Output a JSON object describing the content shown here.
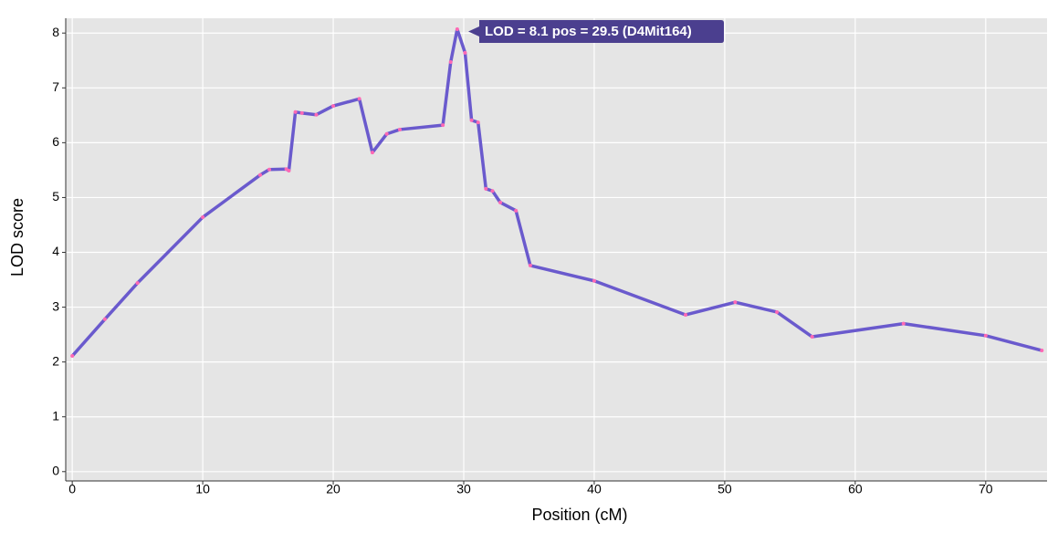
{
  "chart_data": {
    "type": "line",
    "xlabel": "Position (cM)",
    "ylabel": "LOD score",
    "annotation": "LOD = 8.1 pos = 29.5 (D4Mit164)",
    "xlim": [
      -0.5,
      74.7
    ],
    "ylim": [
      -0.17,
      8.27
    ],
    "xticks": [
      0,
      10,
      20,
      30,
      40,
      50,
      60,
      70
    ],
    "yticks": [
      0,
      1,
      2,
      3,
      4,
      5,
      6,
      7,
      8
    ],
    "grid": true,
    "background": "#e5e5e5",
    "series": [
      {
        "color": "#6a5acd",
        "marker_color": "#ff69b4",
        "x": [
          0,
          2.5,
          5,
          10,
          14.4,
          15.1,
          16.4,
          16.6,
          17.1,
          17.6,
          18.7,
          20,
          22,
          23,
          24.1,
          25.1,
          28.4,
          29,
          29.5,
          30.1,
          30.6,
          31.1,
          31.7,
          32.2,
          32.8,
          34,
          35.1,
          40,
          47,
          50.8,
          54,
          56.7,
          63.7,
          70,
          74.3
        ],
        "values": [
          2.11,
          2.78,
          3.44,
          4.64,
          5.41,
          5.51,
          5.52,
          5.49,
          6.56,
          6.54,
          6.51,
          6.67,
          6.8,
          5.82,
          6.16,
          6.24,
          6.32,
          7.47,
          8.07,
          7.64,
          6.41,
          6.37,
          5.16,
          5.12,
          4.91,
          4.76,
          3.76,
          3.48,
          2.86,
          3.09,
          2.91,
          2.46,
          2.7,
          2.48,
          2.21
        ]
      }
    ]
  }
}
